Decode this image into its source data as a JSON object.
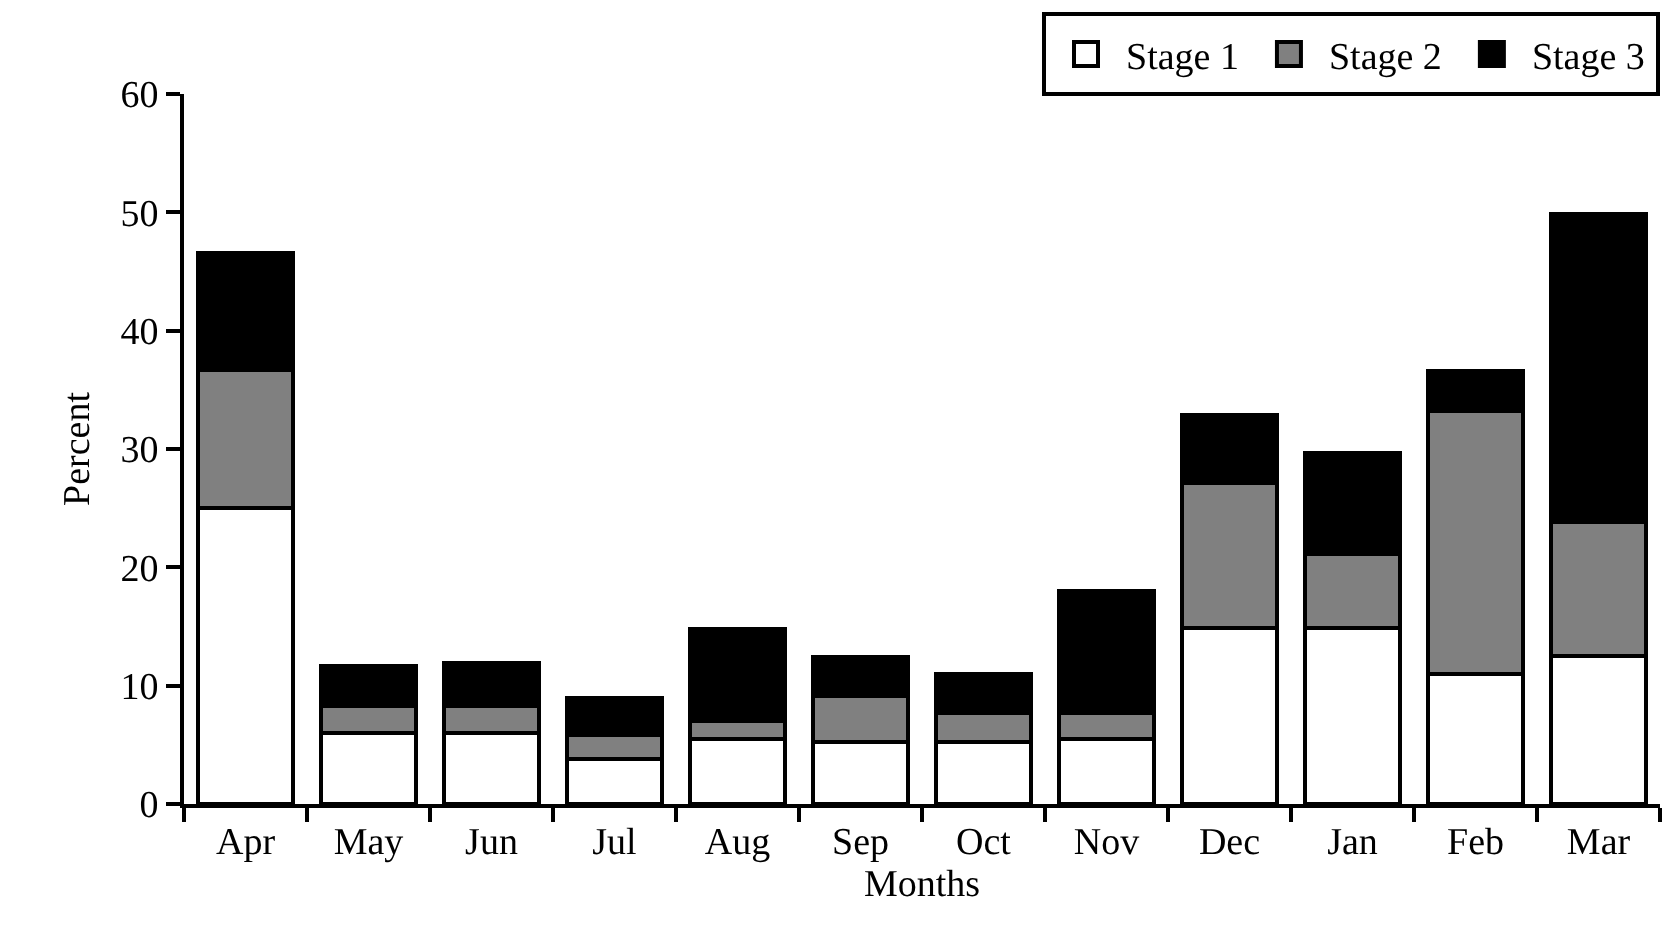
{
  "chart_data": {
    "type": "bar",
    "stacked": true,
    "xlabel": "Months",
    "ylabel": "Percent",
    "categories": [
      "Apr",
      "May",
      "Jun",
      "Jul",
      "Aug",
      "Sep",
      "Oct",
      "Nov",
      "Dec",
      "Jan",
      "Feb",
      "Mar"
    ],
    "series": [
      {
        "name": "Stage 1",
        "color": "#ffffff",
        "values": [
          25.0,
          6.0,
          6.0,
          3.8,
          5.5,
          5.2,
          5.2,
          5.5,
          14.9,
          14.9,
          11.0,
          12.5
        ]
      },
      {
        "name": "Stage 2",
        "color": "#808080",
        "values": [
          11.7,
          2.3,
          2.3,
          2.0,
          1.5,
          3.9,
          2.5,
          2.2,
          12.2,
          6.2,
          22.2,
          11.3
        ]
      },
      {
        "name": "Stage 3",
        "color": "#000000",
        "values": [
          9.9,
          3.4,
          3.6,
          3.2,
          7.8,
          3.3,
          3.3,
          10.3,
          5.8,
          8.6,
          3.4,
          26.1
        ]
      }
    ],
    "ylim": [
      0,
      60
    ],
    "yticks": [
      0,
      10,
      20,
      30,
      40,
      50,
      60
    ],
    "legend": "top right"
  }
}
